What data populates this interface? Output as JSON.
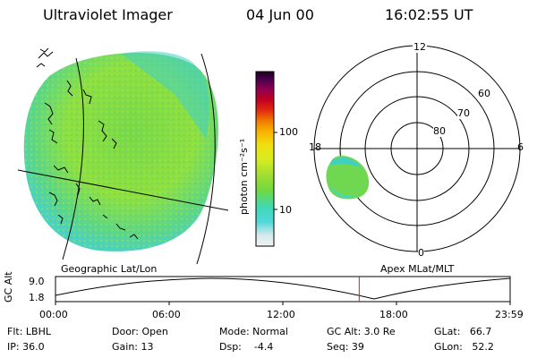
{
  "header": {
    "instrument": "Ultraviolet Imager",
    "date": "04 Jun 00",
    "time": "16:02:55 UT"
  },
  "earth_image": {
    "label": "Geographic Lat/Lon"
  },
  "colorbar": {
    "unit_label": "photon cm⁻²s⁻¹",
    "ticks": [
      {
        "value": 100,
        "label": "100"
      },
      {
        "value": 10,
        "label": "10"
      }
    ],
    "colors": [
      "#e8e8e8",
      "#cfe8ec",
      "#50d8d8",
      "#40d8b0",
      "#6ad840",
      "#9ce030",
      "#c8e828",
      "#e8f018",
      "#f8c810",
      "#f89000",
      "#e83010",
      "#c80010",
      "#a00040",
      "#600050",
      "#200020"
    ]
  },
  "polar_plot": {
    "label": "Apex MLat/MLT",
    "mlt_labels": {
      "top": "12",
      "left": "18",
      "right": "6",
      "bottom": "0"
    },
    "lat_labels": [
      "60",
      "70",
      "80"
    ]
  },
  "timeline": {
    "ylabel": "GC Alt",
    "y_ticks": [
      "9.0",
      "1.8"
    ],
    "x_ticks": [
      "00:00",
      "06:00",
      "12:00",
      "18:00",
      "23:59"
    ],
    "current_time_fraction": 0.668
  },
  "status": {
    "flt": "Flt: LBHL",
    "ip": "IP: 36.0",
    "door": "Door: Open",
    "gain": "Gain: 13",
    "mode": "Mode: Normal",
    "dsp": "Dsp:    -4.4",
    "gcalt": "GC Alt: 3.0 Re",
    "seq": "Seq: 39",
    "glat": "GLat:   66.7",
    "glon": "GLon:   52.2"
  }
}
